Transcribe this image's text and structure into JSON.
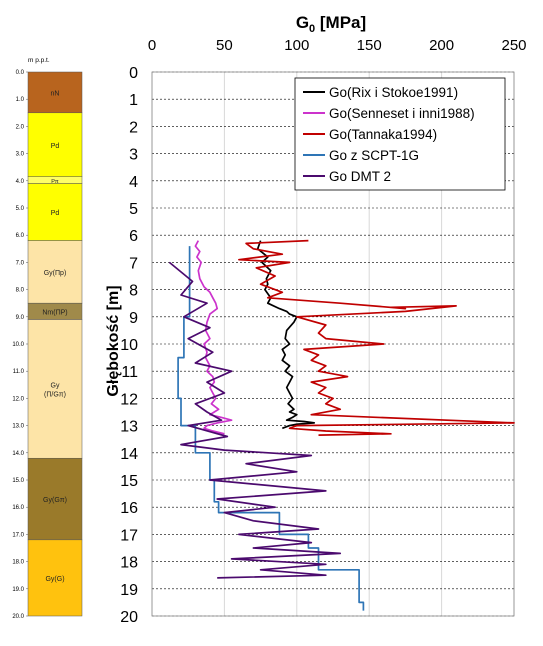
{
  "log": {
    "header": "m p.p.t.",
    "depth_ticks": [
      "0.0",
      "1.0",
      "2.0",
      "3.0",
      "4.0",
      "5.0",
      "6.0",
      "7.0",
      "8.0",
      "9.0",
      "10.0",
      "11.0",
      "12.0",
      "13.0",
      "14.0",
      "15.0",
      "16.0",
      "17.0",
      "18.0",
      "19.0",
      "20.0"
    ],
    "layers": [
      {
        "top": 0.0,
        "bottom": 1.5,
        "label": "nN",
        "color": "#b8641e"
      },
      {
        "top": 1.5,
        "bottom": 3.85,
        "label": "Pd",
        "color": "#ffff00"
      },
      {
        "top": 3.85,
        "bottom": 4.1,
        "label": "Pπ",
        "color": "#ffff66"
      },
      {
        "top": 4.1,
        "bottom": 6.2,
        "label": "Pd",
        "color": "#ffff00"
      },
      {
        "top": 6.2,
        "bottom": 8.5,
        "label": "Gy(Πp)",
        "color": "#fde4a7"
      },
      {
        "top": 8.5,
        "bottom": 9.1,
        "label": "Nm(ΠP)",
        "color": "#a08a4a"
      },
      {
        "top": 9.1,
        "bottom": 14.2,
        "label": "Gy (Π/Gπ)",
        "color": "#fde4a7"
      },
      {
        "top": 14.2,
        "bottom": 17.2,
        "label": "Gy(Gπ)",
        "color": "#9a7a2a"
      },
      {
        "top": 17.2,
        "bottom": 20.0,
        "label": "Gy(G)",
        "color": "#ffc20e"
      }
    ]
  },
  "chart_data": {
    "type": "line",
    "title": "G0 [MPa]",
    "xlabel": "G0 [MPa]",
    "ylabel": "Głębokość [m]",
    "xlim": [
      0,
      250
    ],
    "ylim": [
      20,
      0
    ],
    "xticks": [
      "0",
      "50",
      "100",
      "150",
      "200",
      "250"
    ],
    "yticks": [
      "0",
      "1",
      "2",
      "3",
      "4",
      "5",
      "6",
      "7",
      "8",
      "9",
      "10",
      "11",
      "12",
      "13",
      "14",
      "15",
      "16",
      "17",
      "18",
      "19",
      "20"
    ],
    "grid": true,
    "legend_position": "top-right",
    "series": [
      {
        "name": "Go(Rix i Stokoe1991)",
        "color": "#000000",
        "x": [
          75,
          73,
          80,
          76,
          82,
          79,
          80,
          78,
          82,
          80,
          88,
          93,
          95,
          100,
          98,
          93,
          92,
          95,
          90,
          92,
          90,
          95,
          92,
          97,
          95,
          93,
          95,
          97,
          94,
          98,
          95,
          100,
          97,
          93,
          105,
          112,
          100,
          95,
          90
        ],
        "y": [
          6.2,
          6.5,
          6.8,
          7.0,
          7.3,
          7.6,
          7.8,
          8.0,
          8.3,
          8.5,
          8.7,
          8.8,
          8.9,
          9.0,
          9.2,
          9.5,
          9.8,
          10.0,
          10.2,
          10.4,
          10.6,
          10.8,
          11.0,
          11.2,
          11.4,
          11.6,
          11.8,
          12.0,
          12.2,
          12.4,
          12.5,
          12.6,
          12.7,
          12.8,
          12.85,
          12.9,
          12.95,
          13.0,
          13.1
        ]
      },
      {
        "name": "Go(Senneset i inni1988)",
        "color": "#cc33cc",
        "x": [
          32,
          30,
          33,
          31,
          34,
          32,
          33,
          36,
          40,
          42,
          44,
          45,
          40,
          38,
          37,
          40,
          36,
          38,
          37,
          40,
          38,
          42,
          43,
          40,
          42,
          44,
          41,
          46,
          43,
          40,
          48,
          55,
          45,
          38,
          36,
          42,
          50
        ],
        "y": [
          6.2,
          6.4,
          6.6,
          6.8,
          7.0,
          7.3,
          7.6,
          7.9,
          8.1,
          8.3,
          8.5,
          8.7,
          8.9,
          9.2,
          9.5,
          9.8,
          10.0,
          10.3,
          10.5,
          10.8,
          11.0,
          11.2,
          11.4,
          11.6,
          11.8,
          12.0,
          12.2,
          12.4,
          12.5,
          12.6,
          12.7,
          12.8,
          12.9,
          13.0,
          13.1,
          13.2,
          13.3
        ]
      },
      {
        "name": "Go(Tannaka1994)",
        "color": "#c00000",
        "x": [
          108,
          65,
          70,
          90,
          60,
          95,
          72,
          85,
          75,
          90,
          80,
          130,
          175,
          165,
          210,
          175,
          100,
          120,
          115,
          120,
          160,
          105,
          115,
          110,
          120,
          115,
          135,
          110,
          120,
          115,
          125,
          120,
          130,
          110,
          250,
          100,
          95,
          120,
          165,
          115
        ],
        "y": [
          6.2,
          6.3,
          6.5,
          6.7,
          6.9,
          7.0,
          7.2,
          7.5,
          7.8,
          8.1,
          8.3,
          8.5,
          8.7,
          8.65,
          8.6,
          8.8,
          9.0,
          9.3,
          9.6,
          9.8,
          10.0,
          10.2,
          10.4,
          10.6,
          10.8,
          11.0,
          11.2,
          11.4,
          11.6,
          11.8,
          12.0,
          12.2,
          12.4,
          12.6,
          12.9,
          13.0,
          13.1,
          13.2,
          13.3,
          13.35
        ]
      },
      {
        "name": "Go z SCPT-1G",
        "color": "#2e75b6",
        "x": [
          26,
          26,
          22,
          22,
          18,
          18,
          20,
          20,
          30,
          30,
          40,
          40,
          43,
          43,
          46,
          46,
          88,
          88,
          108,
          108,
          115,
          115,
          143,
          143,
          146,
          146
        ],
        "y": [
          6.4,
          9.0,
          9.0,
          10.5,
          10.5,
          12.0,
          12.0,
          13.0,
          13.0,
          14.0,
          14.0,
          15.0,
          15.0,
          15.8,
          15.8,
          16.2,
          16.2,
          17.0,
          17.0,
          17.5,
          17.5,
          18.3,
          18.3,
          19.5,
          19.5,
          19.8
        ]
      },
      {
        "name": "Go DMT 2",
        "color": "#4b0a6e",
        "x": [
          12,
          28,
          20,
          38,
          22,
          40,
          25,
          42,
          30,
          55,
          38,
          50,
          30,
          38,
          48,
          25,
          52,
          20,
          50,
          110,
          65,
          100,
          40,
          120,
          45,
          85,
          50,
          70,
          115,
          60,
          110,
          70,
          130,
          55,
          120,
          75,
          120,
          45
        ],
        "y": [
          7.0,
          7.7,
          8.2,
          8.5,
          9.0,
          9.4,
          9.8,
          10.3,
          10.7,
          11.0,
          11.4,
          11.8,
          12.2,
          12.5,
          12.8,
          13.0,
          13.4,
          13.7,
          13.9,
          14.1,
          14.4,
          14.7,
          15.0,
          15.4,
          15.7,
          16.0,
          16.2,
          16.5,
          16.8,
          17.0,
          17.3,
          17.5,
          17.7,
          17.9,
          18.1,
          18.3,
          18.5,
          18.6
        ]
      }
    ]
  }
}
